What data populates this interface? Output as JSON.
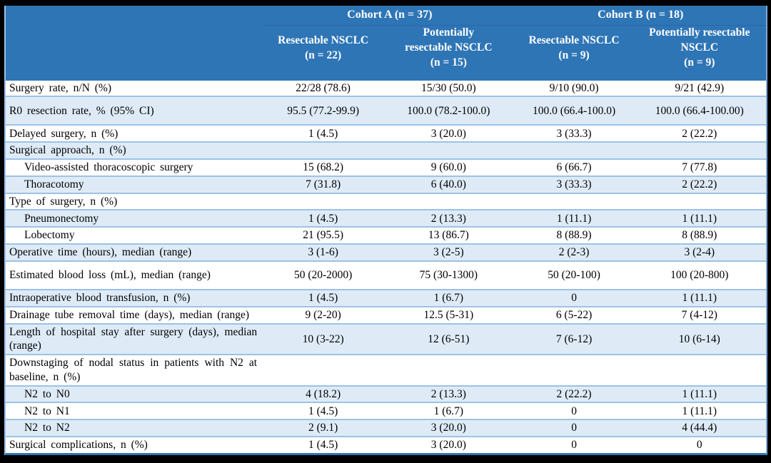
{
  "table": {
    "colors": {
      "header_bg": "#2E75B6",
      "header_text": "#FFFFFF",
      "shaded_row_bg": "#DEEBF7",
      "row_border": "#9CC2E5",
      "strong_border": "#2E75B6",
      "frame": "#000000"
    },
    "cohorts": [
      {
        "label": "Cohort A (n = 37)"
      },
      {
        "label": "Cohort B (n = 18)"
      }
    ],
    "columns": [
      "Resectable NSCLC\n(n = 22)",
      "Potentially\nresectable NSCLC\n(n = 15)",
      "Resectable NSCLC\n(n = 9)",
      "Potentially resectable\nNSCLC\n(n = 9)"
    ],
    "rows": [
      {
        "label": "Surgery rate, n/N (%)",
        "indent": false,
        "values": [
          "22/28 (78.6)",
          "15/30 (50.0)",
          "9/10 (90.0)",
          "9/21 (42.9)"
        ]
      },
      {
        "label": "R0 resection rate, % (95% CI)",
        "indent": false,
        "values": [
          "95.5 (77.2-99.9)",
          "100.0 (78.2-100.0)",
          "100.0 (66.4-100.0)",
          "100.0 (66.4-100.00)"
        ]
      },
      {
        "label": "Delayed surgery, n (%)",
        "indent": false,
        "values": [
          "1 (4.5)",
          "3 (20.0)",
          "3 (33.3)",
          "2 (22.2)"
        ]
      },
      {
        "label": "Surgical approach, n (%)",
        "indent": false,
        "values": [
          "",
          "",
          "",
          ""
        ]
      },
      {
        "label": "Video-assisted thoracoscopic surgery",
        "indent": true,
        "values": [
          "15 (68.2)",
          "9 (60.0)",
          "6 (66.7)",
          "7 (77.8)"
        ]
      },
      {
        "label": "Thoracotomy",
        "indent": true,
        "values": [
          "7 (31.8)",
          "6 (40.0)",
          "3 (33.3)",
          "2 (22.2)"
        ]
      },
      {
        "label": "Type of surgery, n (%)",
        "indent": false,
        "values": [
          "",
          "",
          "",
          ""
        ]
      },
      {
        "label": "Pneumonectomy",
        "indent": true,
        "values": [
          "1 (4.5)",
          "2 (13.3)",
          "1 (11.1)",
          "1 (11.1)"
        ]
      },
      {
        "label": "Lobectomy",
        "indent": true,
        "values": [
          "21 (95.5)",
          "13 (86.7)",
          "8 (88.9)",
          "8 (88.9)"
        ]
      },
      {
        "label": "Operative time (hours), median (range)",
        "indent": false,
        "values": [
          "3 (1-6)",
          "3 (2-5)",
          "2 (2-3)",
          "3 (2-4)"
        ]
      },
      {
        "label": "Estimated blood loss (mL), median (range)",
        "indent": false,
        "values": [
          "50 (20-2000)",
          "75 (30-1300)",
          "50 (20-100)",
          "100 (20-800)"
        ]
      },
      {
        "label": "Intraoperative blood transfusion, n (%)",
        "indent": false,
        "values": [
          "1 (4.5)",
          "1 (6.7)",
          "0",
          "1 (11.1)"
        ]
      },
      {
        "label": "Drainage tube removal time (days), median (range)",
        "indent": false,
        "values": [
          "9 (2-20)",
          "12.5 (5-31)",
          "6 (5-22)",
          "7 (4-12)"
        ]
      },
      {
        "label": "Length of hospital stay after surgery (days), median (range)",
        "indent": false,
        "values": [
          "10 (3-22)",
          "12 (6-51)",
          "7 (6-12)",
          "10 (6-14)"
        ]
      },
      {
        "label": "Downstaging of nodal status in patients with N2 at baseline, n (%)",
        "indent": false,
        "values": [
          "",
          "",
          "",
          ""
        ]
      },
      {
        "label": "N2 to N0",
        "indent": true,
        "values": [
          "4 (18.2)",
          "2 (13.3)",
          "2 (22.2)",
          "1 (11.1)"
        ]
      },
      {
        "label": "N2 to N1",
        "indent": true,
        "values": [
          "1 (4.5)",
          "1 (6.7)",
          "0",
          "1 (11.1)"
        ]
      },
      {
        "label": "N2 to N2",
        "indent": true,
        "values": [
          "2 (9.1)",
          "3 (20.0)",
          "0",
          "4 (44.4)"
        ]
      },
      {
        "label": "Surgical complications, n (%)",
        "indent": false,
        "values": [
          "1 (4.5)",
          "3 (20.0)",
          "0",
          "0"
        ]
      }
    ]
  }
}
